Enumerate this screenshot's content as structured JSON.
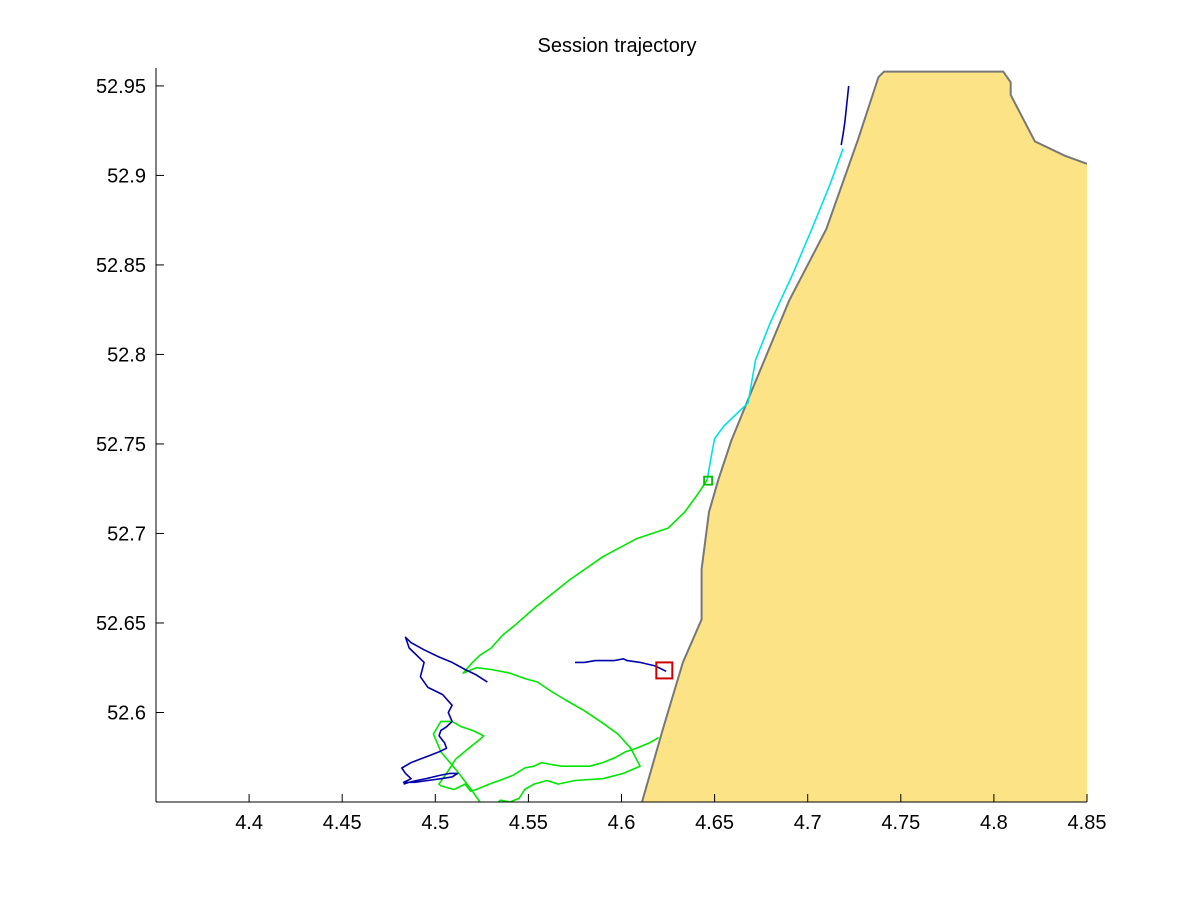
{
  "chart_data": {
    "type": "line",
    "title": "Session trajectory",
    "xlabel": "",
    "ylabel": "",
    "xlim": [
      4.35,
      4.85
    ],
    "ylim": [
      52.55,
      52.96
    ],
    "x_ticks": [
      4.4,
      4.45,
      4.5,
      4.55,
      4.6,
      4.65,
      4.7,
      4.75,
      4.8,
      4.85
    ],
    "x_tick_labels": [
      "4.4",
      "4.45",
      "4.5",
      "4.55",
      "4.6",
      "4.65",
      "4.7",
      "4.75",
      "4.8",
      "4.85"
    ],
    "y_ticks": [
      52.6,
      52.65,
      52.7,
      52.75,
      52.8,
      52.85,
      52.9,
      52.95
    ],
    "y_tick_labels": [
      "52.6",
      "52.65",
      "52.7",
      "52.75",
      "52.8",
      "52.85",
      "52.9",
      "52.95"
    ],
    "grid": false,
    "land": {
      "name": "land",
      "fill": "#FCE386",
      "stroke": "#777777",
      "lon": [
        4.611,
        4.622,
        4.633,
        4.643,
        4.643,
        4.647,
        4.652,
        4.659,
        4.672,
        4.69,
        4.71,
        4.727,
        4.738,
        4.741,
        4.805,
        4.809,
        4.809,
        4.814,
        4.822,
        4.838,
        4.854,
        4.854,
        4.611
      ],
      "lat": [
        52.55,
        52.59,
        52.628,
        52.652,
        52.68,
        52.712,
        52.73,
        52.752,
        52.785,
        52.83,
        52.87,
        52.92,
        52.955,
        52.958,
        52.958,
        52.952,
        52.945,
        52.935,
        52.919,
        52.911,
        52.905,
        52.55,
        52.55
      ]
    },
    "series": [
      {
        "name": "track-dark-blue-north",
        "color": "#0000AA",
        "lon": [
          4.722,
          4.721,
          4.72,
          4.719,
          4.718
        ],
        "lat": [
          52.95,
          52.94,
          52.93,
          52.923,
          52.917
        ]
      },
      {
        "name": "track-cyan",
        "color": "#00E0E6",
        "lon": [
          4.719,
          4.712,
          4.703,
          4.692,
          4.68,
          4.672,
          4.668,
          4.655,
          4.65,
          4.648,
          4.646
        ],
        "lat": [
          52.915,
          52.895,
          52.872,
          52.845,
          52.818,
          52.797,
          52.773,
          52.76,
          52.753,
          52.742,
          52.73
        ]
      },
      {
        "name": "track-green",
        "color": "#00E600",
        "lon": [
          4.646,
          4.641,
          4.634,
          4.625,
          4.608,
          4.59,
          4.572,
          4.554,
          4.543,
          4.536,
          4.53,
          4.524,
          4.52,
          4.515,
          4.522,
          4.53,
          4.54,
          4.548,
          4.555,
          4.562,
          4.57,
          4.58,
          4.59,
          4.598,
          4.605,
          4.61,
          4.601,
          4.59,
          4.575,
          4.566,
          4.56,
          4.553,
          4.548,
          4.545,
          4.54,
          4.535,
          4.532,
          4.528,
          4.524,
          4.52,
          4.512,
          4.503,
          4.499,
          4.503,
          4.509,
          4.514,
          4.52,
          4.524,
          4.526,
          4.524,
          4.518,
          4.511,
          4.506,
          4.502,
          4.503,
          4.51,
          4.516,
          4.519,
          4.522,
          4.529,
          4.537,
          4.542,
          4.548,
          4.553,
          4.555,
          4.557,
          4.562,
          4.568,
          4.574,
          4.583,
          4.59,
          4.597,
          4.602,
          4.608,
          4.615,
          4.62
        ],
        "lat": [
          52.73,
          52.722,
          52.712,
          52.703,
          52.697,
          52.687,
          52.674,
          52.659,
          52.649,
          52.643,
          52.636,
          52.632,
          52.628,
          52.622,
          52.625,
          52.624,
          52.622,
          52.619,
          52.617,
          52.612,
          52.607,
          52.601,
          52.594,
          52.588,
          52.58,
          52.57,
          52.566,
          52.563,
          52.562,
          52.56,
          52.562,
          52.56,
          52.557,
          52.552,
          52.55,
          52.551,
          52.548,
          52.547,
          52.55,
          52.556,
          52.567,
          52.578,
          52.588,
          52.595,
          52.595,
          52.592,
          52.59,
          52.588,
          52.587,
          52.585,
          52.58,
          52.574,
          52.566,
          52.56,
          52.559,
          52.557,
          52.56,
          52.556,
          52.557,
          52.56,
          52.563,
          52.565,
          52.569,
          52.57,
          52.571,
          52.572,
          52.571,
          52.57,
          52.57,
          52.57,
          52.572,
          52.575,
          52.578,
          52.58,
          52.583,
          52.586
        ]
      },
      {
        "name": "track-dark-blue-south",
        "color": "#0000AA",
        "lon": [
          4.624,
          4.618,
          4.61,
          4.603,
          4.601,
          4.596,
          4.591,
          4.586,
          4.58,
          4.575
        ],
        "lat": [
          52.623,
          52.626,
          52.628,
          52.629,
          52.63,
          52.629,
          52.629,
          52.629,
          52.628,
          52.628
        ]
      },
      {
        "name": "track-dark-blue-west",
        "color": "#0000AA",
        "lon": [
          4.528,
          4.522,
          4.516,
          4.509,
          4.502,
          4.494,
          4.487,
          4.484,
          4.486,
          4.494,
          4.492,
          4.496,
          4.504,
          4.509,
          4.507,
          4.509,
          4.506,
          4.503,
          4.502,
          4.505,
          4.506,
          4.502,
          4.497,
          4.492,
          4.487,
          4.482,
          4.484,
          4.487,
          4.483,
          4.489,
          4.496,
          4.503,
          4.509,
          4.512,
          4.508,
          4.503,
          4.499,
          4.495,
          4.49,
          4.486,
          4.483
        ],
        "lat": [
          52.617,
          52.621,
          52.624,
          52.628,
          52.631,
          52.635,
          52.639,
          52.642,
          52.636,
          52.628,
          52.62,
          52.614,
          52.61,
          52.604,
          52.6,
          52.595,
          52.592,
          52.59,
          52.587,
          52.583,
          52.58,
          52.578,
          52.576,
          52.574,
          52.572,
          52.569,
          52.566,
          52.563,
          52.561,
          52.561,
          52.562,
          52.563,
          52.564,
          52.566,
          52.566,
          52.565,
          52.564,
          52.563,
          52.562,
          52.561,
          52.56
        ]
      }
    ],
    "markers": [
      {
        "name": "start-marker",
        "shape": "square",
        "color": "#00C000",
        "lon": 4.6465,
        "lat": 52.7295,
        "size": "small"
      },
      {
        "name": "end-marker",
        "shape": "square",
        "color": "#CC0000",
        "lon": 4.623,
        "lat": 52.6235,
        "size": "large"
      }
    ]
  }
}
